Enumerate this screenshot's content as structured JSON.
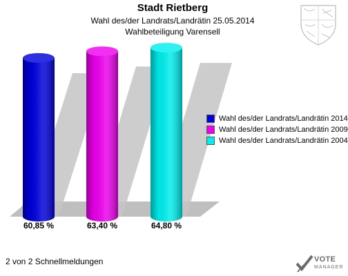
{
  "header": {
    "title": "Stadt Rietberg",
    "subtitle": "Wahl des/der Landrats/Landrätin 25.05.2014",
    "subtitle2": "Wahlbeteiligung Varensell"
  },
  "chart_data": {
    "type": "bar",
    "title": "Stadt Rietberg",
    "categories": [
      "Wahl des/der Landrats/Landrätin 2014",
      "Wahl des/der Landrats/Landrätin 2009",
      "Wahl des/der Landrats/Landrätin 2004"
    ],
    "values": [
      60.85,
      63.4,
      64.8
    ],
    "value_labels": [
      "60,85 %",
      "63,40 %",
      "64,80 %"
    ],
    "colors": [
      "#0000dd",
      "#ee00ee",
      "#00eeee"
    ],
    "ylim": [
      0,
      70
    ],
    "grid": false,
    "legend_position": "right"
  },
  "legend": {
    "items": [
      {
        "label": "Wahl des/der Landrats/Landrätin 2014",
        "color": "#0000dd"
      },
      {
        "label": "Wahl des/der Landrats/Landrätin 2009",
        "color": "#ee00ee"
      },
      {
        "label": "Wahl des/der Landrats/Landrätin 2004",
        "color": "#00eeee"
      }
    ]
  },
  "footer": {
    "text": "2 von 2 Schnellmeldungen"
  },
  "brand": {
    "line1": "VOTE",
    "line2": "MANAGER"
  }
}
